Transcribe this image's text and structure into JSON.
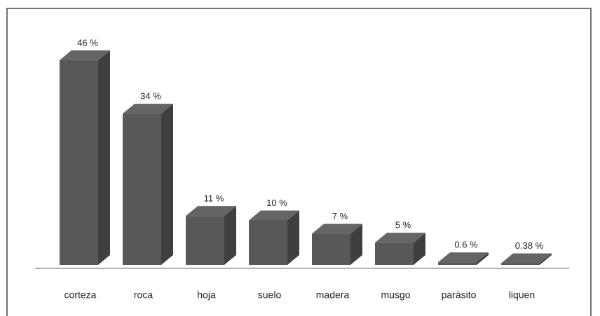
{
  "chart_data": {
    "type": "bar3d",
    "categories": [
      "corteza",
      "roca",
      "hoja",
      "suelo",
      "madera",
      "musgo",
      "parásito",
      "liquen"
    ],
    "values": [
      46,
      34,
      11,
      10,
      7,
      5,
      0.6,
      0.38
    ],
    "value_labels": [
      "46 %",
      "34 %",
      "11 %",
      "10  %",
      "7 %",
      "5 %",
      "0.6 %",
      "0.38 %"
    ],
    "color": "#58585a"
  }
}
